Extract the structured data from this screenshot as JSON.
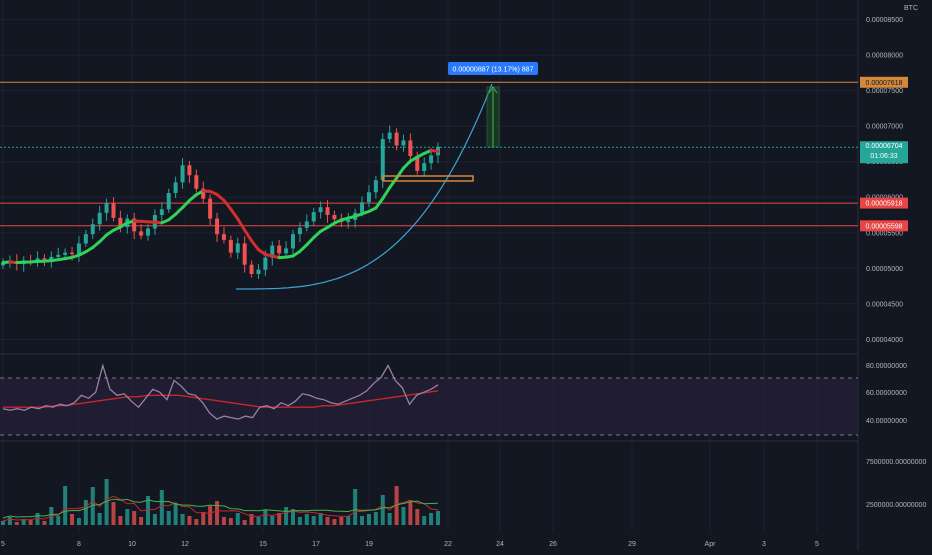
{
  "currency": "BTC",
  "colors": {
    "background": "#131722",
    "grid": "#1e2230",
    "axis_text": "#b2b5be",
    "up": "#26a69a",
    "down": "#ef5350",
    "ma_up": "#2fd35a",
    "ma_down": "#d32f2f",
    "level_orange": "#d4883a",
    "level_red": "#e84545",
    "curve": "#3aa6d6",
    "rsi_line": "#9a7fa8",
    "rsi_ma": "#c62828",
    "rsi_band": "#2a1f3d",
    "price_tag_bg": "#26a69a",
    "measure_bg": "#2979ff"
  },
  "main": {
    "price_axis_labels": [
      "0.00008500",
      "0.00008000",
      "0.00007500",
      "0.00007000",
      "0.00006500",
      "0.00006000",
      "0.00005500",
      "0.00005000",
      "0.00004500",
      "0.00004000"
    ],
    "orange_level_tag": "0.00007618",
    "current_price_tag": "0.00006704",
    "countdown": "01:06:33",
    "red_level_1_tag": "0.00005918",
    "red_level_2_tag": "0.00005598",
    "measure_label": "0.00000887 (13.17%) 887"
  },
  "rsi": {
    "labels": [
      "80.00000000",
      "60.00000000",
      "40.00000000"
    ]
  },
  "volume": {
    "labels": [
      "7500000.00000000",
      "2500000.00000000"
    ]
  },
  "time_axis": [
    "5",
    "8",
    "10",
    "12",
    "15",
    "17",
    "19",
    "22",
    "24",
    "26",
    "29",
    "Apr",
    "3",
    "5"
  ],
  "chart_data": {
    "type": "candlestick",
    "price_levels": {
      "orange_resistance": 7.618e-05,
      "red_level_1": 5.918e-05,
      "red_level_2": 5.598e-05,
      "current_price": 6.704e-05
    },
    "price_range": [
      3.85e-05,
      8.72e-05
    ],
    "x_date_labels": [
      "5",
      "8",
      "10",
      "12",
      "15",
      "17",
      "19",
      "22",
      "24",
      "26",
      "29",
      "Apr",
      "3",
      "5"
    ],
    "closes": [
      5.08e-05,
      5.1e-05,
      5.06e-05,
      5.11e-05,
      5.09e-05,
      5.14e-05,
      5.12e-05,
      5.16e-05,
      5.19e-05,
      5.22e-05,
      5.2e-05,
      5.35e-05,
      5.48e-05,
      5.62e-05,
      5.78e-05,
      5.92e-05,
      5.71e-05,
      5.58e-05,
      5.7e-05,
      5.52e-05,
      5.46e-05,
      5.56e-05,
      5.75e-05,
      5.83e-05,
      6.06e-05,
      6.21e-05,
      6.45e-05,
      6.31e-05,
      6.12e-05,
      5.98e-05,
      5.7e-05,
      5.48e-05,
      5.4e-05,
      5.22e-05,
      5.35e-05,
      5.05e-05,
      4.92e-05,
      4.98e-05,
      5.15e-05,
      5.32e-05,
      5.21e-05,
      5.28e-05,
      5.48e-05,
      5.57e-05,
      5.66e-05,
      5.79e-05,
      5.86e-05,
      5.75e-05,
      5.69e-05,
      5.65e-05,
      5.68e-05,
      5.78e-05,
      5.93e-05,
      6.07e-05,
      6.24e-05,
      6.82e-05,
      6.91e-05,
      6.73e-05,
      6.8e-05,
      6.58e-05,
      6.37e-05,
      6.48e-05,
      6.59e-05,
      6.71e-05
    ],
    "rsi_values": [
      51,
      50,
      51,
      50,
      52,
      51,
      53,
      52,
      54,
      53,
      55,
      60,
      58,
      62,
      80,
      64,
      60,
      61,
      56,
      52,
      58,
      64,
      62,
      57,
      70,
      66,
      61,
      60,
      55,
      48,
      44,
      46,
      45,
      44,
      46,
      45,
      52,
      53,
      51,
      55,
      53,
      56,
      61,
      60,
      58,
      57,
      55,
      54,
      56,
      58,
      60,
      63,
      68,
      72,
      80,
      70,
      65,
      54,
      60,
      62,
      64,
      67
    ],
    "rsi_ma_values": [
      52,
      52,
      52,
      52,
      52,
      53,
      53,
      54,
      55,
      56,
      57,
      58,
      59,
      59,
      60,
      60,
      60,
      60,
      59,
      58,
      57,
      56,
      55,
      54,
      53,
      52,
      52,
      52,
      52,
      52,
      52,
      53,
      53,
      54,
      55,
      56,
      57,
      58,
      59,
      60,
      61,
      62,
      63
    ],
    "volume_values": [
      0.4,
      0.8,
      0.3,
      0.6,
      0.5,
      1.2,
      0.4,
      1.8,
      0.9,
      3.9,
      1.1,
      0.7,
      2.5,
      3.8,
      1.2,
      4.6,
      2.3,
      0.9,
      1.6,
      1.4,
      0.8,
      2.9,
      1.1,
      3.5,
      1.4,
      2.2,
      1.1,
      0.9,
      0.6,
      1.3,
      1.9,
      2.4,
      0.8,
      0.7,
      1.2,
      0.5,
      1.1,
      0.8,
      1.5,
      0.9,
      1.2,
      1.8,
      1.6,
      0.8,
      1.1,
      0.9,
      1.2,
      0.8,
      0.6,
      0.8,
      0.9,
      3.6,
      0.9,
      1.1,
      1.3,
      3.0,
      1.2,
      3.9,
      1.8,
      2.5,
      1.6,
      0.9,
      1.2,
      1.4
    ]
  }
}
